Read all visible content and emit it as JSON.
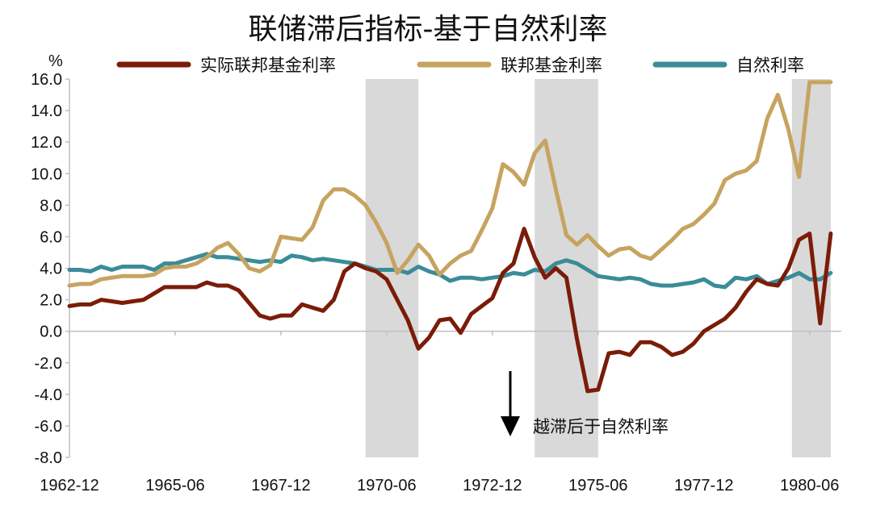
{
  "chart_data": {
    "type": "line",
    "title": "联储滞后指标-基于自然利率",
    "y_unit": "%",
    "ylim": [
      -8.0,
      16.0
    ],
    "y_ticks": [
      "16.0",
      "14.0",
      "12.0",
      "10.0",
      "8.0",
      "6.0",
      "4.0",
      "2.0",
      "0.0",
      "-2.0",
      "-4.0",
      "-6.0",
      "-8.0"
    ],
    "x_range": [
      "1962-12",
      "1981-03"
    ],
    "x_ticks": [
      "1962-12",
      "1965-06",
      "1967-12",
      "1970-06",
      "1972-12",
      "1975-06",
      "1977-12",
      "1980-06"
    ],
    "grid": false,
    "legend_position": "top",
    "shaded_periods": [
      {
        "start": "1969-12",
        "end": "1971-03"
      },
      {
        "start": "1973-12",
        "end": "1975-06"
      },
      {
        "start": "1980-01",
        "end": "1980-12"
      }
    ],
    "annotation": {
      "text": "越滞后于自然利率",
      "arrow": "down"
    },
    "series": [
      {
        "name": "实际联邦基金利率",
        "color": "#7b1c08",
        "x": [
          "1962-12",
          "1963-03",
          "1963-06",
          "1963-09",
          "1963-12",
          "1964-03",
          "1964-06",
          "1964-09",
          "1964-12",
          "1965-03",
          "1965-06",
          "1965-09",
          "1965-12",
          "1966-03",
          "1966-06",
          "1966-09",
          "1966-12",
          "1967-03",
          "1967-06",
          "1967-09",
          "1967-12",
          "1968-03",
          "1968-06",
          "1968-09",
          "1968-12",
          "1969-03",
          "1969-06",
          "1969-09",
          "1969-12",
          "1970-03",
          "1970-06",
          "1970-09",
          "1970-12",
          "1971-03",
          "1971-06",
          "1971-09",
          "1971-12",
          "1972-03",
          "1972-06",
          "1972-09",
          "1972-12",
          "1973-03",
          "1973-06",
          "1973-09",
          "1973-12",
          "1974-03",
          "1974-06",
          "1974-09",
          "1974-12",
          "1975-03",
          "1975-06",
          "1975-09",
          "1975-12",
          "1976-03",
          "1976-06",
          "1976-09",
          "1976-12",
          "1977-03",
          "1977-06",
          "1977-09",
          "1977-12",
          "1978-03",
          "1978-06",
          "1978-09",
          "1978-12",
          "1979-03",
          "1979-06",
          "1979-09",
          "1979-12",
          "1980-03",
          "1980-06",
          "1980-09",
          "1980-12"
        ],
        "values": [
          1.6,
          1.7,
          1.7,
          2.0,
          1.9,
          1.8,
          1.9,
          2.0,
          2.4,
          2.8,
          2.8,
          2.8,
          2.8,
          3.1,
          2.9,
          2.9,
          2.6,
          1.8,
          1.0,
          0.8,
          1.0,
          1.0,
          1.7,
          1.5,
          1.3,
          2.0,
          3.8,
          4.3,
          4.0,
          3.8,
          3.3,
          2.0,
          0.7,
          -1.1,
          -0.4,
          0.7,
          0.8,
          -0.1,
          1.1,
          1.6,
          2.1,
          3.7,
          4.3,
          6.5,
          4.7,
          3.4,
          4.0,
          3.4,
          -0.5,
          -3.8,
          -3.7,
          -1.4,
          -1.3,
          -1.5,
          -0.7,
          -0.7,
          -1.0,
          -1.5,
          -1.3,
          -0.8,
          0.0,
          0.4,
          0.8,
          1.5,
          2.5,
          3.3,
          3.0,
          2.9,
          4.0,
          5.8,
          6.2,
          0.5,
          6.2
        ]
      },
      {
        "name": "联邦基金利率",
        "color": "#c6a460",
        "x": [
          "1962-12",
          "1963-03",
          "1963-06",
          "1963-09",
          "1963-12",
          "1964-03",
          "1964-06",
          "1964-09",
          "1964-12",
          "1965-03",
          "1965-06",
          "1965-09",
          "1965-12",
          "1966-03",
          "1966-06",
          "1966-09",
          "1966-12",
          "1967-03",
          "1967-06",
          "1967-09",
          "1967-12",
          "1968-03",
          "1968-06",
          "1968-09",
          "1968-12",
          "1969-03",
          "1969-06",
          "1969-09",
          "1969-12",
          "1970-03",
          "1970-06",
          "1970-09",
          "1970-12",
          "1971-03",
          "1971-06",
          "1971-09",
          "1971-12",
          "1972-03",
          "1972-06",
          "1972-09",
          "1972-12",
          "1973-03",
          "1973-06",
          "1973-09",
          "1973-12",
          "1974-03",
          "1974-06",
          "1974-09",
          "1974-12",
          "1975-03",
          "1975-06",
          "1975-09",
          "1975-12",
          "1976-03",
          "1976-06",
          "1976-09",
          "1976-12",
          "1977-03",
          "1977-06",
          "1977-09",
          "1977-12",
          "1978-03",
          "1978-06",
          "1978-09",
          "1978-12",
          "1979-03",
          "1979-06",
          "1979-09",
          "1979-12",
          "1980-03",
          "1980-06",
          "1980-09",
          "1980-12"
        ],
        "values": [
          2.9,
          3.0,
          3.0,
          3.3,
          3.4,
          3.5,
          3.5,
          3.5,
          3.6,
          4.0,
          4.1,
          4.1,
          4.3,
          4.7,
          5.3,
          5.6,
          4.9,
          4.0,
          3.8,
          4.2,
          6.0,
          5.9,
          5.8,
          6.6,
          8.3,
          9.0,
          9.0,
          8.6,
          8.0,
          6.9,
          5.6,
          3.7,
          4.5,
          5.5,
          4.8,
          3.6,
          4.3,
          4.8,
          5.1,
          6.4,
          7.8,
          10.6,
          10.1,
          9.3,
          11.3,
          12.1,
          9.0,
          6.1,
          5.5,
          6.1,
          5.4,
          4.8,
          5.2,
          5.3,
          4.8,
          4.6,
          5.2,
          5.8,
          6.5,
          6.8,
          7.4,
          8.1,
          9.6,
          10.0,
          10.2,
          10.8,
          13.5,
          15.0,
          12.8,
          9.8,
          15.8,
          15.8,
          15.8
        ]
      },
      {
        "name": "自然利率",
        "color": "#3a8c98",
        "x": [
          "1962-12",
          "1963-03",
          "1963-06",
          "1963-09",
          "1963-12",
          "1964-03",
          "1964-06",
          "1964-09",
          "1964-12",
          "1965-03",
          "1965-06",
          "1965-09",
          "1965-12",
          "1966-03",
          "1966-06",
          "1966-09",
          "1966-12",
          "1967-03",
          "1967-06",
          "1967-09",
          "1967-12",
          "1968-03",
          "1968-06",
          "1968-09",
          "1968-12",
          "1969-03",
          "1969-06",
          "1969-09",
          "1969-12",
          "1970-03",
          "1970-06",
          "1970-09",
          "1970-12",
          "1971-03",
          "1971-06",
          "1971-09",
          "1971-12",
          "1972-03",
          "1972-06",
          "1972-09",
          "1972-12",
          "1973-03",
          "1973-06",
          "1973-09",
          "1973-12",
          "1974-03",
          "1974-06",
          "1974-09",
          "1974-12",
          "1975-03",
          "1975-06",
          "1975-09",
          "1975-12",
          "1976-03",
          "1976-06",
          "1976-09",
          "1976-12",
          "1977-03",
          "1977-06",
          "1977-09",
          "1977-12",
          "1978-03",
          "1978-06",
          "1978-09",
          "1978-12",
          "1979-03",
          "1979-06",
          "1979-09",
          "1979-12",
          "1980-03",
          "1980-06",
          "1980-09",
          "1980-12"
        ],
        "values": [
          3.9,
          3.9,
          3.8,
          4.1,
          3.9,
          4.1,
          4.1,
          4.1,
          3.9,
          4.3,
          4.3,
          4.5,
          4.7,
          4.9,
          4.7,
          4.7,
          4.6,
          4.5,
          4.4,
          4.5,
          4.4,
          4.8,
          4.7,
          4.5,
          4.6,
          4.5,
          4.4,
          4.3,
          4.1,
          3.9,
          3.9,
          3.9,
          3.7,
          4.1,
          3.8,
          3.6,
          3.2,
          3.4,
          3.4,
          3.3,
          3.4,
          3.5,
          3.7,
          3.6,
          3.9,
          3.8,
          4.3,
          4.5,
          4.3,
          3.9,
          3.5,
          3.4,
          3.3,
          3.4,
          3.3,
          3.0,
          2.9,
          2.9,
          3.0,
          3.1,
          3.3,
          2.9,
          2.8,
          3.4,
          3.3,
          3.5,
          3.0,
          3.2,
          3.4,
          3.7,
          3.3,
          3.3,
          3.7
        ]
      }
    ]
  }
}
